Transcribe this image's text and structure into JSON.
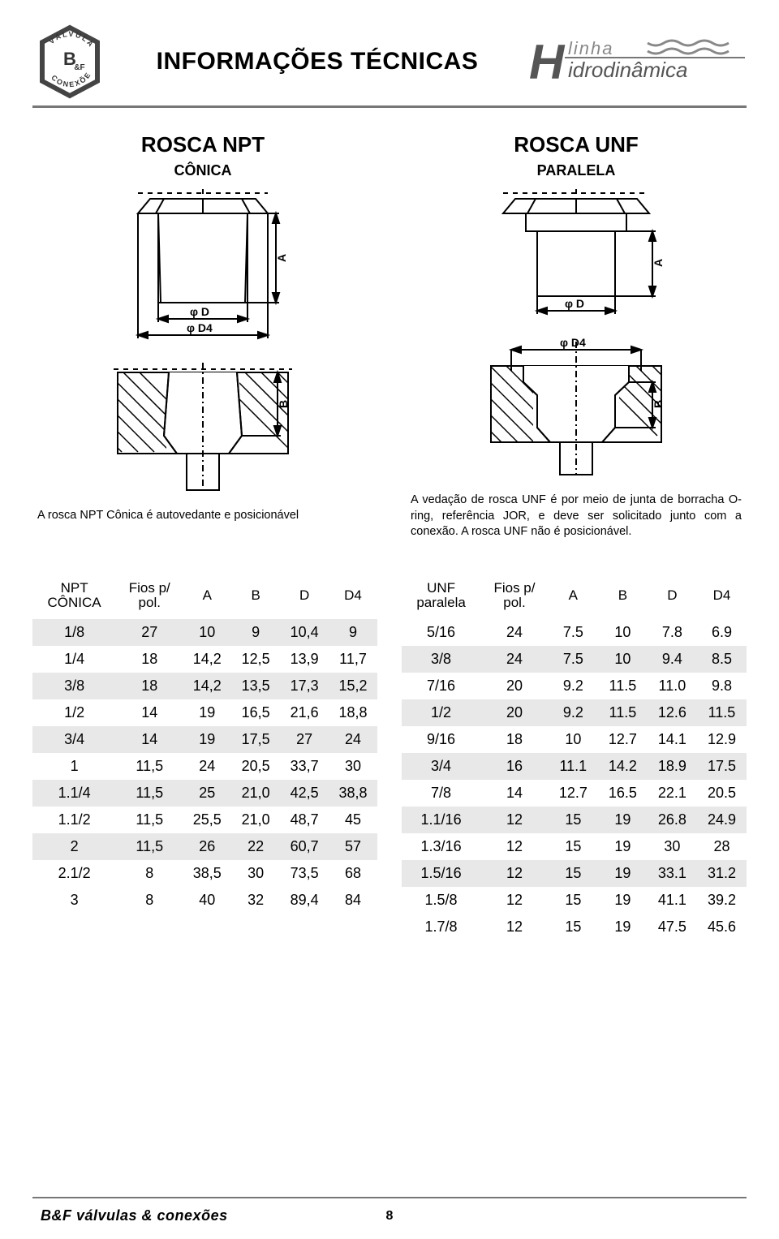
{
  "page_title": "INFORMAÇÕES TÉCNICAS",
  "brand_line1": "linha",
  "brand_line2": "idrodinâmica",
  "left": {
    "heading": "ROSCA NPT",
    "sub": "CÔNICA",
    "caption": "A rosca NPT Cônica é autovedante e posicionável"
  },
  "right": {
    "heading": "ROSCA UNF",
    "sub": "PARALELA",
    "caption": "A vedação de rosca UNF é por meio de junta de borracha O-ring, referência JOR, e deve ser solicitado junto com a conexão. A rosca UNF não é posicionável."
  },
  "table_npt": {
    "headers": [
      "NPT CÔNICA",
      "Fios p/ pol.",
      "A",
      "B",
      "D",
      "D4"
    ],
    "first_multiline": "NPT\nCÔNICA",
    "second_multiline": "Fios p/\npol.",
    "rows": [
      [
        "1/8",
        "27",
        "10",
        "9",
        "10,4",
        "9"
      ],
      [
        "1/4",
        "18",
        "14,2",
        "12,5",
        "13,9",
        "11,7"
      ],
      [
        "3/8",
        "18",
        "14,2",
        "13,5",
        "17,3",
        "15,2"
      ],
      [
        "1/2",
        "14",
        "19",
        "16,5",
        "21,6",
        "18,8"
      ],
      [
        "3/4",
        "14",
        "19",
        "17,5",
        "27",
        "24"
      ],
      [
        "1",
        "11,5",
        "24",
        "20,5",
        "33,7",
        "30"
      ],
      [
        "1.1/4",
        "11,5",
        "25",
        "21,0",
        "42,5",
        "38,8"
      ],
      [
        "1.1/2",
        "11,5",
        "25,5",
        "21,0",
        "48,7",
        "45"
      ],
      [
        "2",
        "11,5",
        "26",
        "22",
        "60,7",
        "57"
      ],
      [
        "2.1/2",
        "8",
        "38,5",
        "30",
        "73,5",
        "68"
      ],
      [
        "3",
        "8",
        "40",
        "32",
        "89,4",
        "84"
      ]
    ],
    "shaded_rows": [
      0,
      2,
      4,
      6,
      8
    ]
  },
  "table_unf": {
    "headers": [
      "UNF paralela",
      "Fios p/ pol.",
      "A",
      "B",
      "D",
      "D4"
    ],
    "first_multiline": "UNF\nparalela",
    "second_multiline": "Fios p/\npol.",
    "rows": [
      [
        "5/16",
        "24",
        "7.5",
        "10",
        "7.8",
        "6.9"
      ],
      [
        "3/8",
        "24",
        "7.5",
        "10",
        "9.4",
        "8.5"
      ],
      [
        "7/16",
        "20",
        "9.2",
        "11.5",
        "11.0",
        "9.8"
      ],
      [
        "1/2",
        "20",
        "9.2",
        "11.5",
        "12.6",
        "11.5"
      ],
      [
        "9/16",
        "18",
        "10",
        "12.7",
        "14.1",
        "12.9"
      ],
      [
        "3/4",
        "16",
        "11.1",
        "14.2",
        "18.9",
        "17.5"
      ],
      [
        "7/8",
        "14",
        "12.7",
        "16.5",
        "22.1",
        "20.5"
      ],
      [
        "1.1/16",
        "12",
        "15",
        "19",
        "26.8",
        "24.9"
      ],
      [
        "1.3/16",
        "12",
        "15",
        "19",
        "30",
        "28"
      ],
      [
        "1.5/16",
        "12",
        "15",
        "19",
        "33.1",
        "31.2"
      ],
      [
        "1.5/8",
        "12",
        "15",
        "19",
        "41.1",
        "39.2"
      ],
      [
        "1.7/8",
        "12",
        "15",
        "19",
        "47.5",
        "45.6"
      ]
    ],
    "shaded_rows": [
      1,
      3,
      5,
      7,
      9
    ]
  },
  "footer_brand": "B&F válvulas & conexões",
  "page_number": "8",
  "colors": {
    "rule": "#7a7a7a",
    "shade": "#e8e8e8",
    "text": "#000000"
  }
}
